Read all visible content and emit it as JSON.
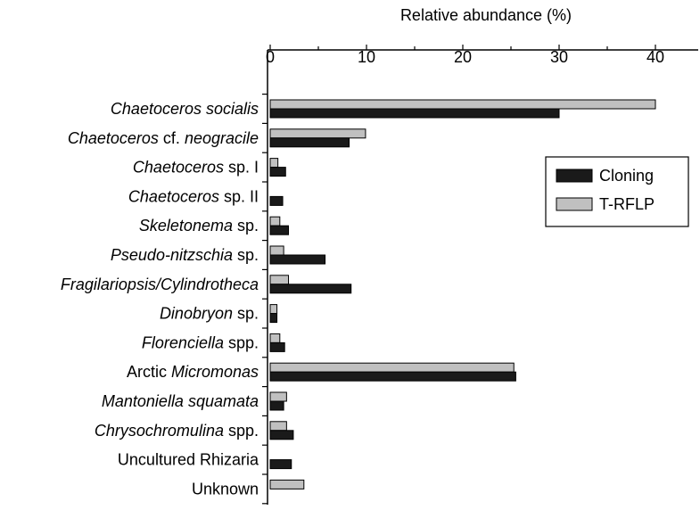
{
  "chart_data": {
    "type": "bar",
    "orientation": "horizontal",
    "xlabel": "Relative abundance (%)",
    "xlim": [
      0,
      44
    ],
    "xticks": [
      "0",
      "10",
      "20",
      "30",
      "40"
    ],
    "legend_position": "right",
    "categories": [
      {
        "parts": [
          {
            "t": "Chaetoceros socialis",
            "i": true
          }
        ]
      },
      {
        "parts": [
          {
            "t": "Chaetoceros",
            "i": true
          },
          {
            "t": " cf. ",
            "i": false
          },
          {
            "t": "neogracile",
            "i": true
          }
        ]
      },
      {
        "parts": [
          {
            "t": "Chaetoceros",
            "i": true
          },
          {
            "t": " sp. I",
            "i": false
          }
        ]
      },
      {
        "parts": [
          {
            "t": "Chaetoceros",
            "i": true
          },
          {
            "t": " sp. II",
            "i": false
          }
        ]
      },
      {
        "parts": [
          {
            "t": "Skeletonema",
            "i": true
          },
          {
            "t": " sp.",
            "i": false
          }
        ]
      },
      {
        "parts": [
          {
            "t": "Pseudo-nitzschia",
            "i": true
          },
          {
            "t": " sp.",
            "i": false
          }
        ]
      },
      {
        "parts": [
          {
            "t": "Fragilariopsis/Cylindrotheca",
            "i": true
          }
        ]
      },
      {
        "parts": [
          {
            "t": "Dinobryon",
            "i": true
          },
          {
            "t": " sp.",
            "i": false
          }
        ]
      },
      {
        "parts": [
          {
            "t": "Florenciella",
            "i": true
          },
          {
            "t": " spp.",
            "i": false
          }
        ]
      },
      {
        "parts": [
          {
            "t": "Arctic ",
            "i": false
          },
          {
            "t": "Micromonas",
            "i": true
          }
        ]
      },
      {
        "parts": [
          {
            "t": "Mantoniella squamata",
            "i": true
          }
        ]
      },
      {
        "parts": [
          {
            "t": "Chrysochromulina",
            "i": true
          },
          {
            "t": " spp.",
            "i": false
          }
        ]
      },
      {
        "parts": [
          {
            "t": "Uncultured Rhizaria",
            "i": false
          }
        ]
      },
      {
        "parts": [
          {
            "t": "Unknown",
            "i": false
          }
        ]
      }
    ],
    "series": [
      {
        "name": "T-RFLP",
        "color": "#c0c0c0",
        "values": [
          40.0,
          9.9,
          0.8,
          0,
          1.0,
          1.4,
          1.9,
          0.7,
          1.0,
          25.3,
          1.7,
          1.7,
          0,
          3.5
        ]
      },
      {
        "name": "Cloning",
        "color": "#1a1a1a",
        "values": [
          30.0,
          8.2,
          1.6,
          1.3,
          1.9,
          5.7,
          8.4,
          0.7,
          1.5,
          25.5,
          1.4,
          2.4,
          2.2,
          0
        ]
      }
    ],
    "legend": [
      {
        "name": "Cloning",
        "color": "#1a1a1a"
      },
      {
        "name": "T-RFLP",
        "color": "#c0c0c0"
      }
    ]
  }
}
